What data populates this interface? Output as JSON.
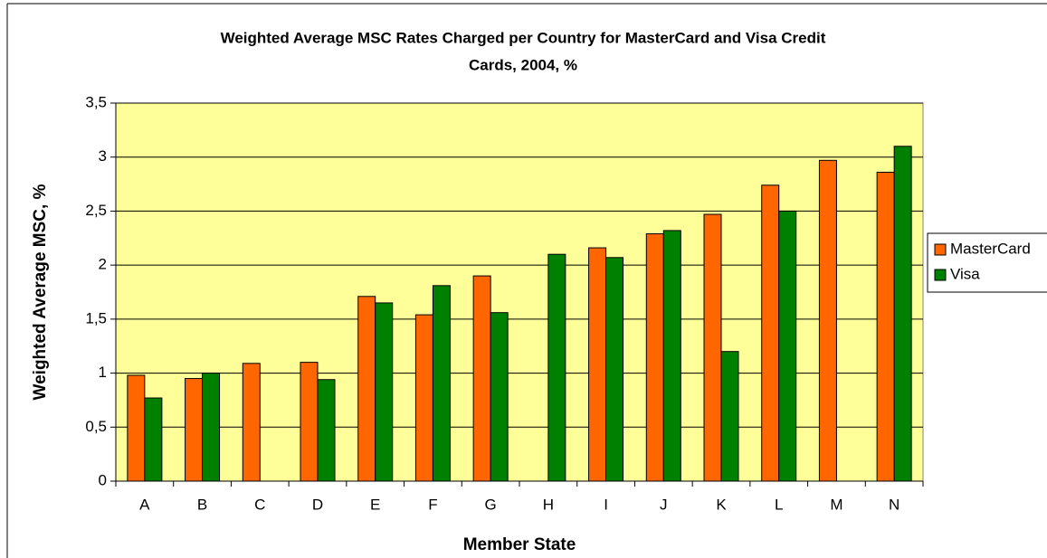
{
  "chart_data": {
    "type": "bar",
    "title": [
      "Weighted Average MSC Rates Charged per Country for MasterCard and Visa Credit",
      "Cards, 2004, %"
    ],
    "xlabel": "Member State",
    "ylabel": "Weighted Average MSC, %",
    "categories": [
      "A",
      "B",
      "C",
      "D",
      "E",
      "F",
      "G",
      "H",
      "I",
      "J",
      "K",
      "L",
      "M",
      "N"
    ],
    "series": [
      {
        "name": "MasterCard",
        "color": "#ff6600",
        "values": [
          0.98,
          0.95,
          1.09,
          1.1,
          1.71,
          1.54,
          1.9,
          null,
          2.16,
          2.29,
          2.47,
          2.74,
          2.97,
          2.86
        ]
      },
      {
        "name": "Visa",
        "color": "#008000",
        "values": [
          0.77,
          1.0,
          null,
          0.94,
          1.65,
          1.81,
          1.56,
          2.1,
          2.07,
          2.32,
          1.2,
          2.5,
          null,
          3.1
        ]
      }
    ],
    "ylim": [
      0,
      3.5
    ],
    "yticks": [
      0,
      {
        "value": 0.5,
        "label": "0,5"
      },
      1,
      {
        "value": 1.5,
        "label": "1,5"
      },
      2,
      {
        "value": 2.5,
        "label": "2,5"
      },
      3,
      {
        "value": 3.5,
        "label": "3,5"
      }
    ],
    "grid": true,
    "legend": "right",
    "plot_background": "#ffff99"
  }
}
